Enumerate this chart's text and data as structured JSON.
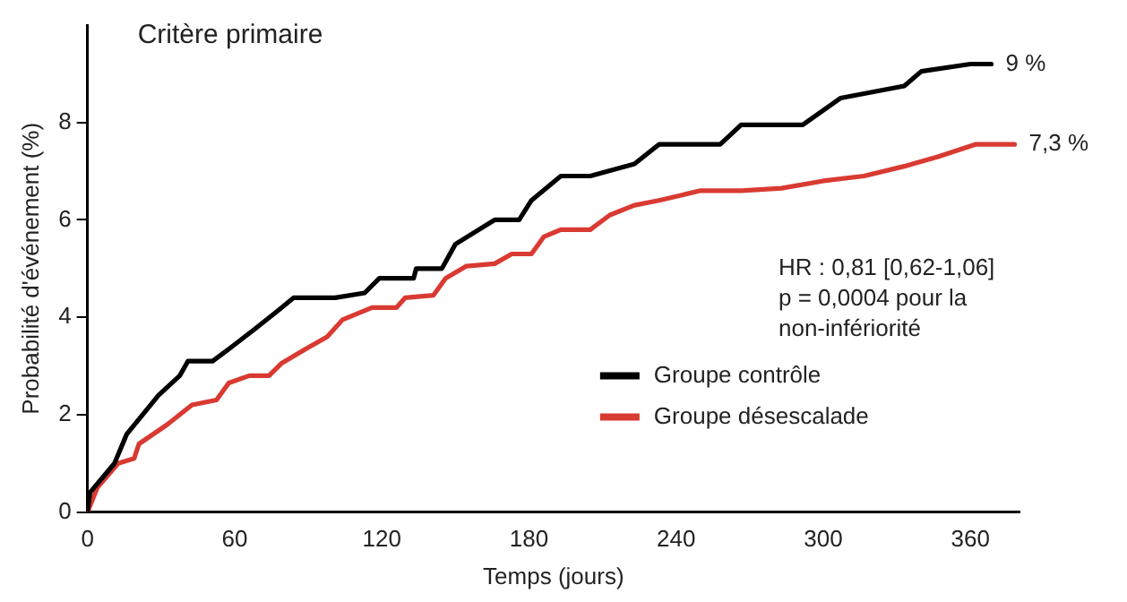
{
  "chart_data": {
    "type": "line",
    "title": "Critère primaire",
    "xlabel": "Temps (jours)",
    "ylabel": "Probabilité d'événement (%)",
    "xlim": [
      0,
      380
    ],
    "xticks": [
      0,
      60,
      120,
      180,
      240,
      300,
      360
    ],
    "ylim": [
      0,
      10
    ],
    "yticks": [
      0,
      2,
      4,
      6,
      8
    ],
    "grid": false,
    "legend": "bottom right",
    "marker": "none",
    "line_style": "solid",
    "series": [
      {
        "name": "Groupe contrôle",
        "color": "#000000",
        "x": [
          0,
          1,
          11,
          16,
          22.5,
          29,
          37.6,
          41,
          51,
          59,
          68,
          78,
          84,
          101,
          113,
          119,
          133,
          134,
          144.5,
          150,
          166,
          176,
          181,
          193,
          205,
          216,
          223,
          233,
          258,
          266.5,
          291.6,
          307,
          333,
          340,
          360,
          368.5
        ],
        "values": [
          0,
          0.4,
          1.0,
          1.6,
          2.0,
          2.4,
          2.8,
          3.1,
          3.1,
          3.4,
          3.75,
          4.15,
          4.4,
          4.4,
          4.5,
          4.8,
          4.8,
          5.0,
          5.0,
          5.5,
          6.0,
          6.0,
          6.4,
          6.9,
          6.9,
          7.05,
          7.15,
          7.55,
          7.55,
          7.95,
          7.95,
          8.5,
          8.75,
          9.05,
          9.2,
          9.2
        ]
      },
      {
        "name": "Groupe désescalade",
        "color": "#d93a32",
        "x": [
          0,
          4,
          12.5,
          19,
          21,
          32.6,
          42.6,
          52.6,
          57.6,
          66,
          74,
          79,
          89,
          97.7,
          104,
          116,
          126,
          129.5,
          141,
          146,
          154.5,
          166,
          173,
          181,
          186,
          193,
          205,
          213,
          223,
          233,
          250,
          266.5,
          283,
          300,
          316.6,
          333,
          347,
          362,
          378
        ],
        "values": [
          0,
          0.5,
          1.0,
          1.1,
          1.4,
          1.8,
          2.2,
          2.3,
          2.65,
          2.8,
          2.8,
          3.05,
          3.35,
          3.6,
          3.95,
          4.2,
          4.2,
          4.4,
          4.45,
          4.8,
          5.05,
          5.1,
          5.3,
          5.3,
          5.65,
          5.8,
          5.8,
          6.1,
          6.3,
          6.4,
          6.6,
          6.6,
          6.65,
          6.8,
          6.9,
          7.1,
          7.3,
          7.55,
          7.55
        ]
      }
    ],
    "annotations": [
      {
        "text": "9 %",
        "x": 368.5,
        "y": 9.2
      },
      {
        "text": "7,3 %",
        "x": 378,
        "y": 7.55
      },
      "HR : 0,81 [0,62-1,06]",
      "p = 0,0004 pour la",
      "non-infériorité"
    ]
  }
}
